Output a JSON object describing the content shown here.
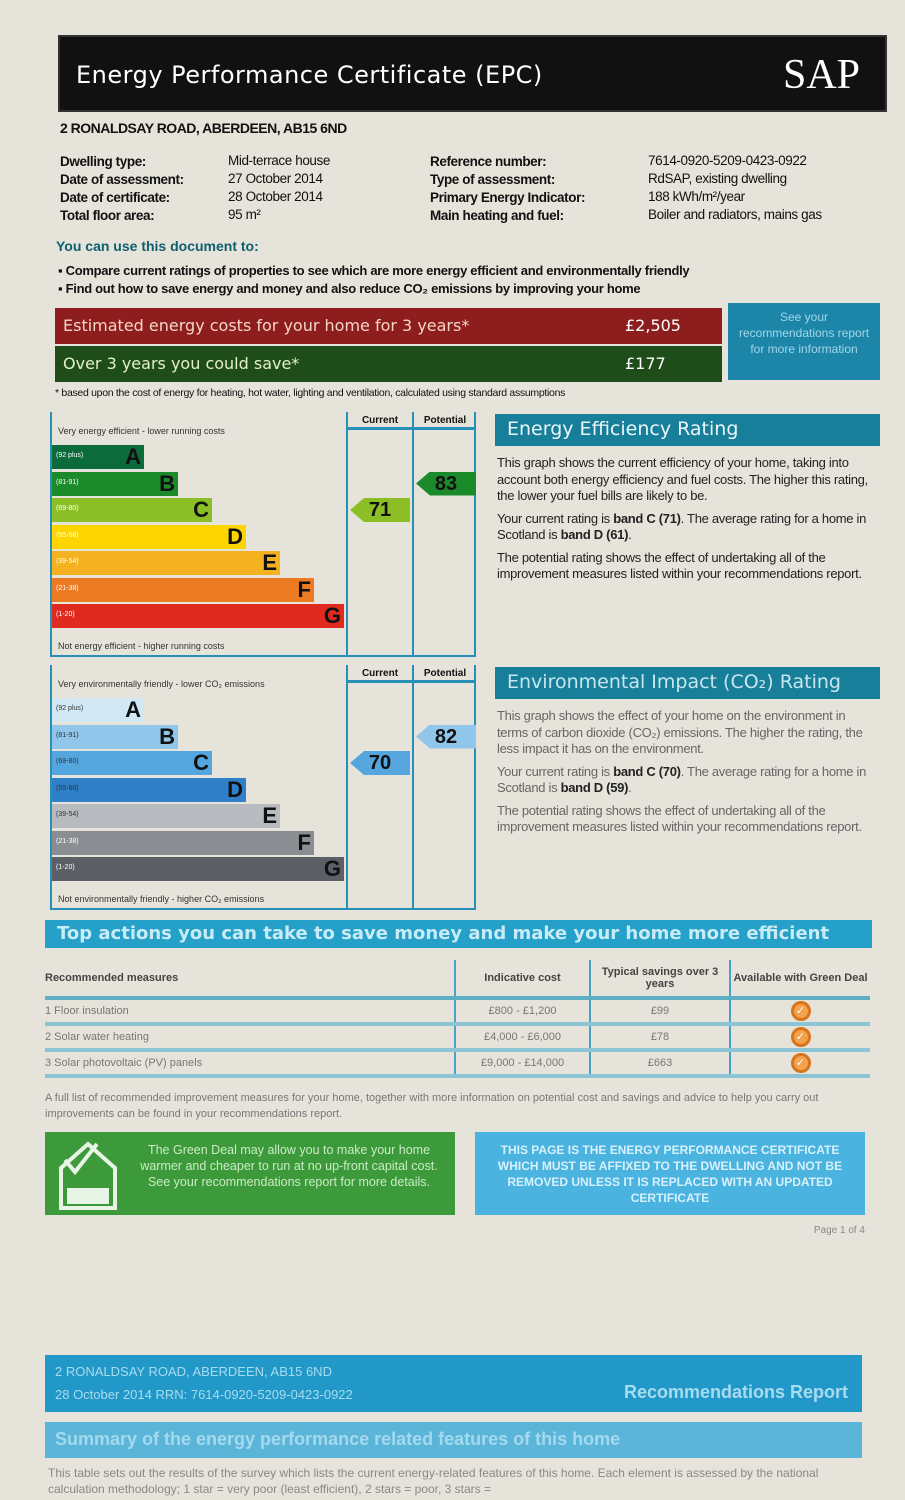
{
  "header": {
    "title": "Energy Performance Certificate (EPC)",
    "logo": "SAP"
  },
  "address": "2 RONALDSAY ROAD, ABERDEEN, AB15 6ND",
  "details_left": [
    {
      "label": "Dwelling type:",
      "value": "Mid-terrace house"
    },
    {
      "label": "Date of assessment:",
      "value": "27 October 2014"
    },
    {
      "label": "Date of certificate:",
      "value": "28 October 2014"
    },
    {
      "label": "Total floor area:",
      "value": "95 m²"
    }
  ],
  "details_right": [
    {
      "label": "Reference number:",
      "value": "7614-0920-5209-0423-0922"
    },
    {
      "label": "Type of assessment:",
      "value": "RdSAP, existing dwelling"
    },
    {
      "label": "Primary Energy Indicator:",
      "value": "188 kWh/m²/year"
    },
    {
      "label": "Main heating and fuel:",
      "value": "Boiler and radiators, mains gas"
    }
  ],
  "use": {
    "heading": "You can use this document to:",
    "bullets": [
      "Compare current ratings of properties to see which are more energy efficient and environmentally friendly",
      "Find out how to save energy and money and also reduce CO₂ emissions by improving your home"
    ]
  },
  "costs": {
    "estimated_label": "Estimated energy costs for your home for 3 years*",
    "estimated_value": "£2,505",
    "save_label": "Over 3 years you could save*",
    "save_value": "£177",
    "see_box": "See your recommendations report for more information",
    "footnote": "* based upon the cost of energy for heating, hot water, lighting and ventilation, calculated using standard assumptions",
    "colors": {
      "estimated": "#8e1d1d",
      "save": "#1f4d1a"
    }
  },
  "ee_chart": {
    "top": "Very energy efficient - lower running costs",
    "bottom": "Not energy efficient - higher running costs",
    "current_label": "Current",
    "potential_label": "Potential",
    "current": 71,
    "potential": 83,
    "bands": [
      {
        "letter": "A",
        "range": "(92 plus)",
        "color": "#0b6b3a"
      },
      {
        "letter": "B",
        "range": "(81-91)",
        "color": "#1b8a2a"
      },
      {
        "letter": "C",
        "range": "(69-80)",
        "color": "#8cbf26"
      },
      {
        "letter": "D",
        "range": "(55-68)",
        "color": "#ffd500"
      },
      {
        "letter": "E",
        "range": "(39-54)",
        "color": "#f4b120"
      },
      {
        "letter": "F",
        "range": "(21-38)",
        "color": "#ec7a22"
      },
      {
        "letter": "G",
        "range": "(1-20)",
        "color": "#e0291f"
      }
    ]
  },
  "ei_chart": {
    "top": "Very environmentally friendly - lower CO₂ emissions",
    "bottom": "Not environmentally friendly - higher CO₂ emissions",
    "current_label": "Current",
    "potential_label": "Potential",
    "current": 70,
    "potential": 82,
    "bands": [
      {
        "letter": "A",
        "range": "(92 plus)",
        "color": "#d2e8f5"
      },
      {
        "letter": "B",
        "range": "(81-91)",
        "color": "#8fc6ea"
      },
      {
        "letter": "C",
        "range": "(69-80)",
        "color": "#55a6de"
      },
      {
        "letter": "D",
        "range": "(55-68)",
        "color": "#2f80c8"
      },
      {
        "letter": "E",
        "range": "(39-54)",
        "color": "#b8bbbf"
      },
      {
        "letter": "F",
        "range": "(21-38)",
        "color": "#8a8d92"
      },
      {
        "letter": "G",
        "range": "(1-20)",
        "color": "#5c5f65"
      }
    ]
  },
  "ee_text": {
    "title": "Energy Efficiency Rating",
    "p1": "This graph shows the current efficiency of your home, taking into account both energy efficiency and fuel costs. The higher this rating, the lower your fuel bills are likely to be.",
    "p2_a": "Your current rating is ",
    "p2_b": "band C (71)",
    "p2_c": ". The average rating for a home in Scotland is ",
    "p2_d": "band D (61)",
    "p2_e": ".",
    "p3": "The potential rating shows the effect of undertaking all of the improvement measures listed within your recommendations report."
  },
  "ei_text": {
    "title": "Environmental Impact (CO₂) Rating",
    "p1": "This graph shows the effect of your home on the environment in terms of carbon dioxide (CO₂) emissions. The higher the rating, the less impact it has on the environment.",
    "p2_a": "Your current rating is ",
    "p2_b": "band C (70)",
    "p2_c": ". The average rating for a home in Scotland is ",
    "p2_d": "band D (59)",
    "p2_e": ".",
    "p3": "The potential rating shows the effect of undertaking all of the improvement measures listed within your recommendations report."
  },
  "actions": {
    "title": "Top actions you can take to save money and make your home more efficient",
    "headers": [
      "Recommended measures",
      "Indicative cost",
      "Typical savings over 3 years",
      "Available with Green Deal"
    ],
    "rows": [
      {
        "measure": "1 Floor insulation",
        "cost": "£800 - £1,200",
        "savings": "£99"
      },
      {
        "measure": "2 Solar water heating",
        "cost": "£4,000 - £6,000",
        "savings": "£78"
      },
      {
        "measure": "3 Solar photovoltaic (PV) panels",
        "cost": "£9,000 - £14,000",
        "savings": "£663"
      }
    ],
    "note": "A full list of recommended improvement measures for your home, together with more information on potential cost and savings and advice to help you carry out improvements can be found in your recommendations report."
  },
  "green_deal": "The Green Deal may allow you to make your home warmer and cheaper to run at no up-front capital cost. See your recommendations report for more details.",
  "notice": "THIS PAGE IS THE ENERGY PERFORMANCE CERTIFICATE WHICH MUST BE AFFIXED TO THE DWELLING AND NOT BE REMOVED UNLESS IT IS REPLACED WITH AN UPDATED CERTIFICATE",
  "page": "Page 1 of 4",
  "report": {
    "address": "2 RONALDSAY ROAD, ABERDEEN, AB15 6ND",
    "line2": "28 October 2014 RRN: 7614-0920-5209-0423-0922",
    "title": "Recommendations Report",
    "summary_title": "Summary of the energy performance related features of this home",
    "summary_text": "This table sets out the results of the survey which lists the current energy-related features of this home. Each element is assessed by the national calculation methodology; 1 star = very poor (least efficient), 2 stars = poor, 3 stars ="
  }
}
